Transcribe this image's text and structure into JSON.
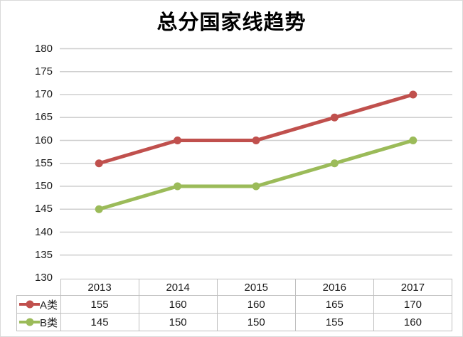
{
  "chart_data": {
    "type": "line",
    "title": "总分国家线趋势",
    "categories": [
      "2013",
      "2014",
      "2015",
      "2016",
      "2017"
    ],
    "series": [
      {
        "name": "A类",
        "color": "#C0504D",
        "values": [
          155,
          160,
          160,
          165,
          170
        ]
      },
      {
        "name": "B类",
        "color": "#9BBB59",
        "values": [
          145,
          150,
          150,
          155,
          160
        ]
      }
    ],
    "xlabel": "",
    "ylabel": "",
    "ylim": [
      130,
      180
    ],
    "ytick_step": 5,
    "ytick_labels": [
      "180",
      "175",
      "170",
      "165",
      "160",
      "155",
      "150",
      "145",
      "140",
      "135",
      "130"
    ],
    "grid": true,
    "legend_position": "left-of-data-table",
    "gridline_color": "#CFCFCF",
    "table_border_color": "#BFBFBF",
    "text_color": "#1A1A1A",
    "background_color": "#FFFFFF"
  }
}
